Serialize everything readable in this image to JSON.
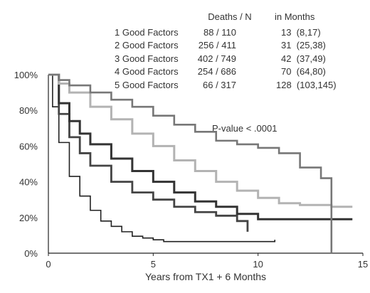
{
  "chart_data": {
    "type": "line",
    "title": "",
    "xlabel": "Years from TX1 + 6 Months",
    "ylabel": "",
    "xlim": [
      0,
      15
    ],
    "ylim": [
      0,
      100
    ],
    "x_ticks": [
      "0",
      "5",
      "10",
      "15"
    ],
    "y_ticks": [
      "0%",
      "20%",
      "40%",
      "60%",
      "80%",
      "100%"
    ],
    "annotation": "P-value < .0001",
    "table": {
      "headers": [
        "Deaths / N",
        "in Months"
      ],
      "rows": [
        {
          "label": "1 Good Factors",
          "deaths_n": "88 / 110",
          "months": "13  (8,17)"
        },
        {
          "label": "2 Good Factors",
          "deaths_n": "256 / 411",
          "months": "31  (25,38)"
        },
        {
          "label": "3 Good Factors",
          "deaths_n": "402 / 749",
          "months": "42  (37,49)"
        },
        {
          "label": "4 Good Factors",
          "deaths_n": "254 / 686",
          "months": "70  (64,80)"
        },
        {
          "label": "5 Good Factors",
          "deaths_n": "66 / 317",
          "months": "128  (103,145)"
        }
      ]
    },
    "series": [
      {
        "color": "#222222",
        "width": 1.6,
        "x": [
          0,
          0.2,
          0.5,
          1.0,
          1.5,
          2.0,
          2.5,
          3.0,
          3.5,
          4.0,
          4.5,
          5.0,
          5.5,
          6.0,
          7.0,
          8.0,
          9.0,
          9.5,
          10.0,
          10.8
        ],
        "y": [
          100,
          82,
          62,
          43,
          32,
          24,
          18,
          15,
          12,
          9.5,
          8.5,
          7.5,
          6.5,
          6.5,
          6.5,
          6.5,
          6.5,
          6.5,
          6.5,
          7.5
        ]
      },
      {
        "color": "#444444",
        "width": 2.8,
        "x": [
          0,
          0.5,
          1.0,
          1.5,
          2.0,
          3.0,
          4.0,
          5.0,
          6.0,
          7.0,
          8.0,
          9.0,
          9.5
        ],
        "y": [
          100,
          78,
          65,
          56,
          49,
          40,
          34,
          30,
          26,
          23,
          21,
          18,
          12
        ]
      },
      {
        "color": "#333333",
        "width": 3.0,
        "x": [
          0,
          0.5,
          1.0,
          1.5,
          2.0,
          3.0,
          4.0,
          5.0,
          6.0,
          7.0,
          8.0,
          9.0,
          10.0,
          12.0,
          14.5
        ],
        "y": [
          100,
          84,
          74,
          67,
          61,
          53,
          46,
          40,
          34,
          29,
          26,
          22,
          19,
          19,
          19
        ]
      },
      {
        "color": "#b3b3b3",
        "width": 3.0,
        "x": [
          0,
          0.5,
          1.0,
          2.0,
          3.0,
          4.0,
          5.0,
          6.0,
          7.0,
          8.0,
          9.0,
          10.0,
          11.0,
          12.0,
          13.5,
          14.5
        ],
        "y": [
          100,
          95,
          90,
          82,
          75,
          67,
          60,
          52,
          46,
          40,
          35,
          31,
          28,
          27,
          26,
          26
        ]
      },
      {
        "color": "#777777",
        "width": 2.6,
        "x": [
          0,
          0.5,
          1.0,
          2.0,
          3.0,
          4.0,
          5.0,
          6.0,
          7.0,
          8.0,
          9.0,
          10.0,
          11.0,
          12.0,
          13.0,
          13.5,
          13.5
        ],
        "y": [
          100,
          97,
          94,
          90,
          86,
          82,
          77,
          72,
          68,
          63,
          61,
          59,
          56,
          48,
          42,
          42,
          0
        ]
      }
    ]
  }
}
